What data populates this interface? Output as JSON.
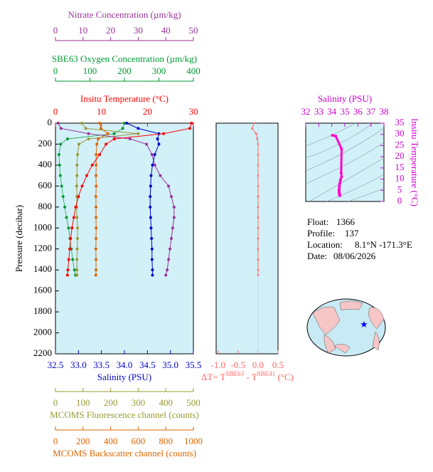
{
  "chart_data": [
    {
      "type": "profile",
      "y_title": "Pressure (decibar)",
      "ylim": [
        0,
        2200
      ],
      "yticks": [
        0,
        200,
        400,
        600,
        800,
        1000,
        1200,
        1400,
        1600,
        1800,
        2000,
        2200
      ],
      "pressure": [
        0,
        50,
        100,
        150,
        200,
        300,
        400,
        500,
        600,
        700,
        800,
        900,
        1000,
        1100,
        1200,
        1300,
        1400,
        1450
      ],
      "axes": [
        {
          "title": "Nitrate Concentration (µm/kg)",
          "color": "#993399",
          "xlim": [
            0,
            50
          ],
          "xticks": [
            0,
            10,
            20,
            30,
            40,
            50
          ],
          "values": [
            1,
            2,
            12,
            27,
            33,
            35,
            36,
            38,
            41,
            42,
            43,
            43,
            42.5,
            42,
            41.5,
            41,
            40.5,
            40
          ]
        },
        {
          "title": "SBE63 Oxygen Concentration (µm/kg)",
          "color": "#009933",
          "xlim": [
            0,
            400
          ],
          "xticks": [
            0,
            100,
            200,
            300,
            400
          ],
          "values": [
            200,
            195,
            170,
            35,
            15,
            10,
            12,
            14,
            18,
            22,
            27,
            32,
            38,
            42,
            46,
            50,
            55,
            58
          ]
        },
        {
          "title": "Insitu Temperature (°C)",
          "color": "#ff0000",
          "xlim": [
            0,
            30
          ],
          "xticks": [
            0,
            10,
            20,
            30
          ],
          "values": [
            29.6,
            29.2,
            23.5,
            12.8,
            11.0,
            9.6,
            8.0,
            6.8,
            5.8,
            5.0,
            4.4,
            4.0,
            3.6,
            3.3,
            3.1,
            2.9,
            2.7,
            2.6
          ]
        },
        {
          "title": "Salinity (PSU)",
          "color": "#0000cc",
          "xlim": [
            32.5,
            35.5
          ],
          "xticks": [
            32.5,
            {
              "value": 33,
              "label": "33.0"
            },
            33.5,
            {
              "value": 34,
              "label": "34.0"
            },
            34.5,
            {
              "value": 35,
              "label": "35.0"
            },
            35.5
          ],
          "values": [
            34.05,
            34.3,
            34.75,
            34.72,
            34.75,
            34.66,
            34.61,
            34.58,
            34.57,
            34.56,
            34.56,
            34.57,
            34.58,
            34.59,
            34.6,
            34.6,
            34.61,
            34.61
          ]
        },
        {
          "title": "MCOMS Fluorescence channel (counts)",
          "color": "#999933",
          "xlim": [
            0,
            500
          ],
          "xticks": [
            0,
            100,
            200,
            300,
            400,
            500
          ],
          "values": [
            95,
            110,
            300,
            120,
            85,
            80,
            78,
            78,
            77,
            78,
            77,
            78,
            80,
            80,
            79,
            78,
            78,
            78
          ]
        },
        {
          "title": "MCOMS Backscatter channel (counts)",
          "color": "#dd6600",
          "xlim": [
            0,
            1000
          ],
          "xticks": [
            0,
            200,
            400,
            600,
            800,
            1000
          ],
          "values": [
            320,
            330,
            380,
            310,
            300,
            295,
            295,
            294,
            295,
            293,
            294,
            294,
            295,
            294,
            293,
            294,
            294,
            293
          ]
        }
      ]
    },
    {
      "type": "delta",
      "title_parts": [
        "ΔT= T",
        "SBE63",
        " - T",
        "SBE41",
        " (°C)"
      ],
      "color": "#ff6666",
      "xlim": [
        -1.05,
        0.5
      ],
      "xticks": [
        {
          "value": -1,
          "label": "-1.0"
        },
        -0.5,
        {
          "value": 0,
          "label": "0.0"
        },
        0.5
      ],
      "values": [
        -0.1,
        -0.15,
        -0.05,
        -0.02,
        0,
        0,
        0,
        0,
        0,
        0,
        0,
        0,
        0,
        0,
        0,
        0,
        0,
        0
      ]
    },
    {
      "type": "ts",
      "x_title": "Salinity (PSU)",
      "y_title": "Insitu Temperature (°C)",
      "color": "#ff00cc",
      "axis_color": "#cc00cc",
      "xlim": [
        32,
        38
      ],
      "xticks": [
        32,
        33,
        34,
        35,
        36,
        37,
        38
      ],
      "ylim": [
        0,
        35
      ],
      "yticks": [
        0,
        5,
        10,
        15,
        20,
        25,
        30,
        35
      ]
    }
  ],
  "info": [
    {
      "label": "Float:",
      "value": "1366"
    },
    {
      "label": "Profile:",
      "value": "137"
    },
    {
      "label": "Location:",
      "value": "8.1°N  -171.3°E"
    },
    {
      "label": "Date:",
      "value": "08/06/2026"
    }
  ]
}
